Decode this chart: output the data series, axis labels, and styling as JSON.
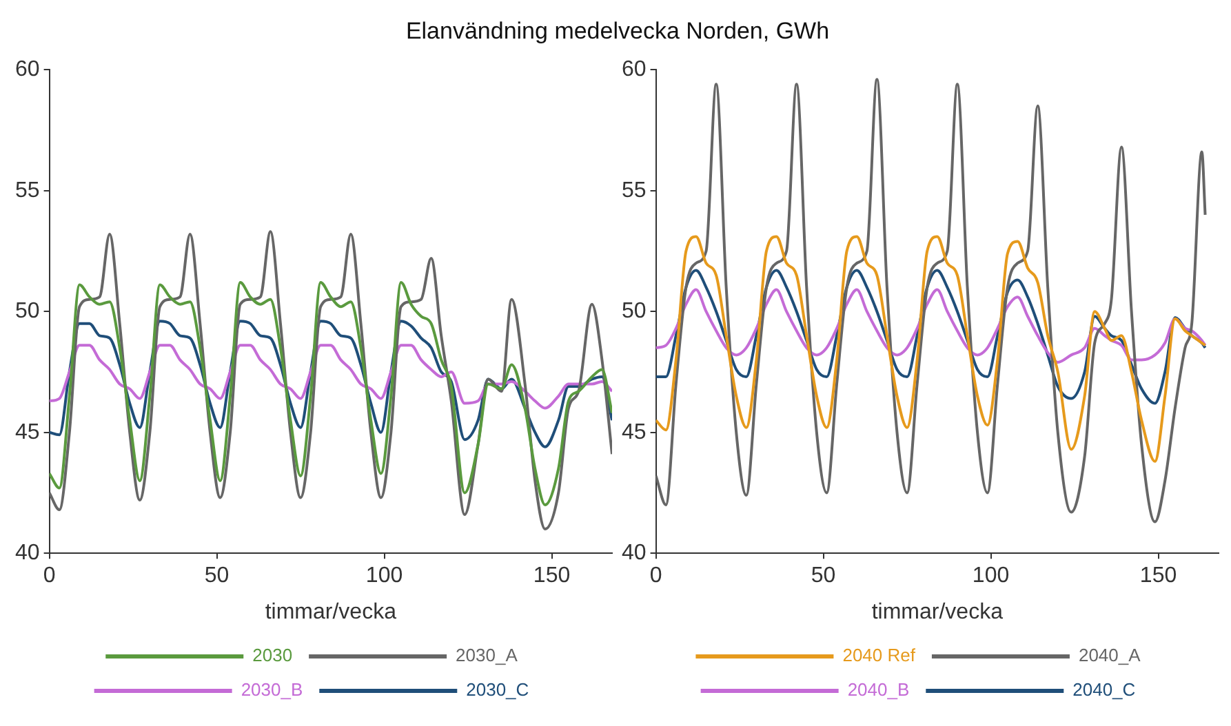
{
  "chart_data": [
    {
      "type": "line",
      "title": "Elanvändning medelvecka Norden, GWh",
      "xlabel": "timmar/vecka",
      "xlim": [
        0,
        168
      ],
      "xticks": [
        0,
        50,
        100,
        150
      ],
      "ylim": [
        40,
        60
      ],
      "yticks": [
        40,
        45,
        50,
        55,
        60
      ],
      "grid": false,
      "legend": "bottom",
      "marker": "none",
      "line_style": "solid",
      "x": [
        0,
        3,
        6,
        9,
        12,
        15,
        18,
        21,
        24,
        27,
        30,
        33,
        36,
        39,
        42,
        45,
        48,
        51,
        54,
        57,
        60,
        63,
        66,
        69,
        72,
        75,
        78,
        81,
        84,
        87,
        90,
        93,
        96,
        99,
        102,
        105,
        108,
        111,
        114,
        117,
        120,
        124,
        128,
        131,
        135,
        138,
        142,
        145,
        148,
        152,
        155,
        158,
        162,
        165,
        168
      ],
      "series": [
        {
          "name": "2030",
          "color": "#5a9a3e",
          "values": [
            43.3,
            42.7,
            46.5,
            51.1,
            50.6,
            50.3,
            50.4,
            48.5,
            45.5,
            43.0,
            46.5,
            51.1,
            50.6,
            50.3,
            50.4,
            48.5,
            45.5,
            43.0,
            46.5,
            51.2,
            50.6,
            50.3,
            50.5,
            48.5,
            45.5,
            43.2,
            46.5,
            51.2,
            50.6,
            50.2,
            50.4,
            48.5,
            45.5,
            43.3,
            46.5,
            51.2,
            50.3,
            49.8,
            49.5,
            48.0,
            46.9,
            42.5,
            44.5,
            47,
            46.8,
            47.8,
            46,
            43.5,
            42.0,
            43.5,
            46.3,
            46.7,
            47.3,
            47.6,
            45.8
          ]
        },
        {
          "name": "2030_A",
          "color": "#666666",
          "values": [
            42.5,
            41.8,
            45,
            50.2,
            50.5,
            50.6,
            53.2,
            49.5,
            45,
            42.2,
            45,
            50.2,
            50.5,
            50.6,
            53.2,
            49.5,
            45,
            42.3,
            45,
            50.3,
            50.5,
            50.6,
            53.3,
            49.5,
            45,
            42.3,
            45,
            50.2,
            50.5,
            50.6,
            53.2,
            49.5,
            45,
            42.3,
            45,
            50.2,
            50.4,
            50.5,
            52.2,
            49.0,
            46.3,
            41.6,
            44.5,
            47.2,
            46.7,
            50.5,
            47,
            43,
            41.0,
            42.5,
            46,
            46.7,
            50.3,
            48,
            44.1
          ]
        },
        {
          "name": "2030_B",
          "color": "#c46bd6",
          "values": [
            46.3,
            46.4,
            47.5,
            48.6,
            48.6,
            48.0,
            47.6,
            47.0,
            46.8,
            46.4,
            47.5,
            48.6,
            48.6,
            48.0,
            47.6,
            47.0,
            46.8,
            46.4,
            47.5,
            48.6,
            48.6,
            48.0,
            47.6,
            47.0,
            46.8,
            46.4,
            47.5,
            48.6,
            48.6,
            48.0,
            47.6,
            47.0,
            46.8,
            46.4,
            47.5,
            48.6,
            48.6,
            48.0,
            47.6,
            47.3,
            47.5,
            46.2,
            46.3,
            47,
            47,
            47.1,
            46.7,
            46.3,
            46.0,
            46.5,
            47.0,
            47.0,
            47,
            47.1,
            46.7
          ]
        },
        {
          "name": "2030_C",
          "color": "#1f4e79",
          "values": [
            45.0,
            44.9,
            47.5,
            49.5,
            49.5,
            49.0,
            48.9,
            47.8,
            46.2,
            45.2,
            47.5,
            49.6,
            49.5,
            49.0,
            48.9,
            47.8,
            46.2,
            45.2,
            47.5,
            49.6,
            49.5,
            49.0,
            48.9,
            47.8,
            46.2,
            45.2,
            47.5,
            49.6,
            49.5,
            49.0,
            48.9,
            47.8,
            46.2,
            45.0,
            47.5,
            49.6,
            49.4,
            48.9,
            48.5,
            47.5,
            47.1,
            44.7,
            45.5,
            47.2,
            46.8,
            47.2,
            46,
            45,
            44.4,
            45.5,
            46.9,
            46.9,
            47.2,
            47.3,
            45.5
          ]
        }
      ]
    },
    {
      "type": "line",
      "xlabel": "timmar/vecka",
      "xlim": [
        0,
        168
      ],
      "xticks": [
        0,
        50,
        100,
        150
      ],
      "ylim": [
        40,
        60
      ],
      "yticks": [
        40,
        45,
        50,
        55,
        60
      ],
      "grid": false,
      "legend": "bottom",
      "marker": "none",
      "line_style": "solid",
      "x": [
        0,
        3,
        6,
        9,
        12,
        15,
        18,
        21,
        24,
        27,
        30,
        33,
        36,
        39,
        42,
        45,
        48,
        51,
        54,
        57,
        60,
        63,
        66,
        69,
        72,
        75,
        78,
        81,
        84,
        87,
        90,
        93,
        96,
        99,
        102,
        105,
        108,
        111,
        114,
        117,
        120,
        124,
        128,
        131,
        134,
        136,
        139,
        142,
        145,
        149,
        152,
        155,
        158,
        160,
        163,
        164
      ],
      "series": [
        {
          "name": "2040 Ref",
          "color": "#e69a1c",
          "values": [
            45.5,
            45.1,
            48,
            52.5,
            53.1,
            52,
            51.5,
            49,
            46.5,
            45.2,
            48,
            52.5,
            53.1,
            52,
            51.5,
            49,
            46.5,
            45.2,
            48,
            52.5,
            53.1,
            52,
            51.5,
            49,
            46.5,
            45.2,
            48,
            52.5,
            53.1,
            52,
            51.5,
            49,
            46.5,
            45.3,
            48,
            52.4,
            52.9,
            51.8,
            51.2,
            49,
            47.5,
            44.3,
            46.5,
            50.0,
            49.3,
            48.8,
            49,
            47.5,
            45.5,
            43.8,
            46.5,
            49.7,
            49.2,
            49,
            48.7,
            48.6
          ]
        },
        {
          "name": "2040_A",
          "color": "#666666",
          "values": [
            43.2,
            42.0,
            47,
            51,
            52,
            52.5,
            59.4,
            51,
            45,
            42.4,
            47,
            51,
            52,
            52.5,
            59.4,
            51,
            45,
            42.5,
            47,
            51,
            52,
            52.5,
            59.6,
            51,
            45,
            42.5,
            47,
            51,
            52,
            52.5,
            59.4,
            51,
            45,
            42.5,
            47,
            51,
            52,
            52.5,
            58.5,
            51,
            45,
            41.7,
            44,
            48.7,
            49.5,
            50.5,
            56.8,
            50,
            44.5,
            41.3,
            43,
            46,
            48.5,
            49.5,
            56.6,
            54
          ]
        },
        {
          "name": "2040_B",
          "color": "#c46bd6",
          "values": [
            48.5,
            48.6,
            49.3,
            50.3,
            50.9,
            50,
            49.2,
            48.5,
            48.2,
            48.5,
            49.3,
            50.3,
            50.9,
            50,
            49.2,
            48.5,
            48.2,
            48.5,
            49.3,
            50.3,
            50.9,
            50,
            49.2,
            48.5,
            48.2,
            48.5,
            49.3,
            50.3,
            50.9,
            50,
            49.2,
            48.5,
            48.2,
            48.5,
            49.3,
            50.2,
            50.6,
            49.8,
            49,
            48.3,
            47.9,
            48.2,
            48.5,
            49.3,
            49,
            48.8,
            48.6,
            48,
            48,
            48.2,
            48.7,
            49.7,
            49.3,
            49.2,
            48.8,
            48.6
          ]
        },
        {
          "name": "2040_C",
          "color": "#1f4e79",
          "values": [
            47.3,
            47.3,
            49,
            51,
            51.7,
            51,
            50,
            48.8,
            47.6,
            47.3,
            49,
            51,
            51.7,
            51,
            50,
            48.8,
            47.6,
            47.3,
            49,
            51,
            51.7,
            51,
            50,
            48.8,
            47.6,
            47.3,
            49,
            51,
            51.7,
            51,
            50,
            48.8,
            47.6,
            47.3,
            49,
            50.8,
            51.3,
            50.6,
            49.5,
            48.2,
            46.9,
            46.4,
            47.5,
            49.8,
            49.3,
            49,
            48.8,
            47.8,
            46.8,
            46.2,
            47.5,
            49.75,
            49.3,
            49,
            48.7,
            48.5
          ]
        }
      ]
    }
  ]
}
